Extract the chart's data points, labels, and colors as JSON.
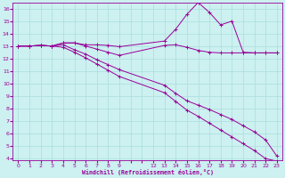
{
  "xlabel": "Windchill (Refroidissement éolien,°C)",
  "bg_color": "#cdf0f0",
  "grid_color": "#a8dede",
  "line_color": "#990099",
  "xlim": [
    -0.5,
    23.5
  ],
  "ylim": [
    3.8,
    16.5
  ],
  "xtick_labels": [
    "0",
    "1",
    "2",
    "3",
    "4",
    "5",
    "6",
    "7",
    "8",
    "9",
    "",
    "",
    "12",
    "13",
    "14",
    "15",
    "16",
    "17",
    "18",
    "19",
    "20",
    "21",
    "22",
    "23"
  ],
  "xtick_positions": [
    0,
    1,
    2,
    3,
    4,
    5,
    6,
    7,
    8,
    9,
    10,
    11,
    12,
    13,
    14,
    15,
    16,
    17,
    18,
    19,
    20,
    21,
    22,
    23
  ],
  "ytick_labels": [
    "4",
    "5",
    "6",
    "7",
    "8",
    "9",
    "10",
    "11",
    "12",
    "13",
    "14",
    "15",
    "16"
  ],
  "ytick_positions": [
    4,
    5,
    6,
    7,
    8,
    9,
    10,
    11,
    12,
    13,
    14,
    15,
    16
  ],
  "line1_x": [
    0,
    1,
    2,
    3,
    4,
    5,
    6,
    7,
    8,
    9,
    13,
    14,
    15,
    16,
    17,
    18,
    19,
    20,
    21,
    22,
    23
  ],
  "line1_y": [
    13.0,
    13.0,
    13.05,
    13.0,
    13.25,
    13.25,
    13.1,
    13.1,
    13.05,
    12.95,
    13.4,
    14.35,
    15.55,
    16.5,
    15.7,
    14.7,
    15.0,
    12.5,
    12.45,
    12.45,
    12.45
  ],
  "line2_x": [
    0,
    1,
    2,
    3,
    4,
    5,
    6,
    7,
    8,
    9,
    13,
    14,
    15,
    16,
    17,
    18,
    19,
    20,
    21,
    22,
    23
  ],
  "line2_y": [
    13.0,
    13.0,
    13.05,
    13.0,
    13.25,
    13.25,
    13.0,
    12.75,
    12.5,
    12.25,
    13.05,
    13.1,
    12.9,
    12.65,
    12.5,
    12.45,
    12.45,
    12.45,
    12.45,
    12.45,
    12.45
  ],
  "line3_x": [
    0,
    1,
    2,
    3,
    4,
    5,
    6,
    7,
    8,
    9,
    13,
    14,
    15,
    16,
    17,
    18,
    19,
    20,
    21,
    22,
    23
  ],
  "line3_y": [
    13.0,
    13.0,
    13.05,
    13.0,
    13.1,
    12.7,
    12.35,
    11.9,
    11.5,
    11.1,
    9.85,
    9.2,
    8.6,
    8.25,
    7.9,
    7.5,
    7.1,
    6.6,
    6.1,
    5.45,
    4.15
  ],
  "line4_x": [
    0,
    1,
    2,
    3,
    4,
    5,
    6,
    7,
    8,
    9,
    13,
    14,
    15,
    16,
    17,
    18,
    19,
    20,
    21,
    22,
    23
  ],
  "line4_y": [
    13.0,
    13.0,
    13.05,
    13.0,
    12.9,
    12.5,
    12.05,
    11.55,
    11.05,
    10.55,
    9.25,
    8.55,
    7.85,
    7.35,
    6.8,
    6.25,
    5.7,
    5.15,
    4.6,
    3.95,
    3.75
  ]
}
